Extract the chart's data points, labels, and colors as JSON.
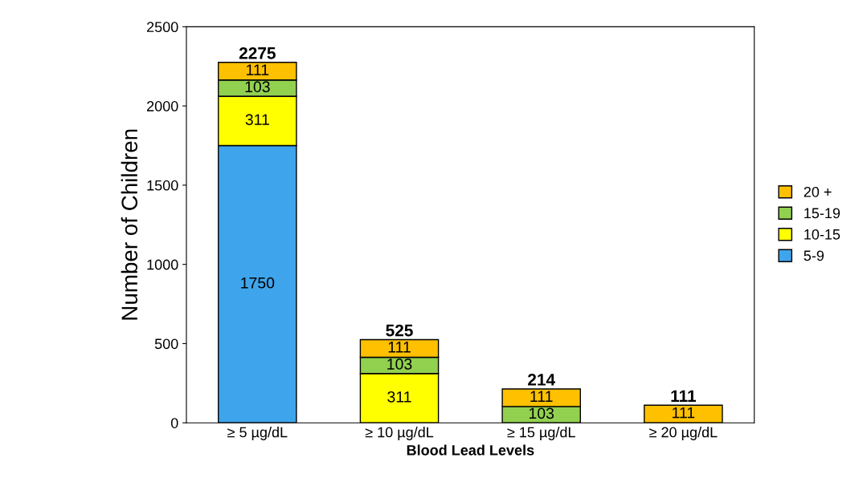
{
  "chart_data": {
    "type": "bar",
    "stacked": true,
    "xlabel": "Blood Lead Levels",
    "ylabel": "Number of Children",
    "categories": [
      "≥ 5 µg/dL",
      "≥ 10 µg/dL",
      "≥ 15 µg/dL",
      "≥ 20 µg/dL"
    ],
    "series": [
      {
        "name": "5-9",
        "color": "#3ea5ec",
        "values": [
          1750,
          null,
          null,
          null
        ],
        "value_labels": [
          "1750",
          null,
          null,
          null
        ]
      },
      {
        "name": "10-15",
        "color": "#ffff00",
        "values": [
          311,
          311,
          null,
          null
        ],
        "value_labels": [
          "311",
          "311",
          null,
          null
        ]
      },
      {
        "name": "15-19",
        "color": "#92d050",
        "values": [
          103,
          103,
          103,
          null
        ],
        "value_labels": [
          "103",
          "103",
          "103",
          null
        ]
      },
      {
        "name": "20 +",
        "color": "#ffc000",
        "values": [
          111,
          111,
          111,
          111
        ],
        "value_labels": [
          "111",
          "111",
          "111",
          "111"
        ]
      }
    ],
    "totals": [
      "2275",
      "525",
      "214",
      "111"
    ],
    "ylim": [
      0,
      2500
    ],
    "yticks": [
      0,
      500,
      1000,
      1500,
      2000,
      2500
    ],
    "grid": false,
    "legend": "right"
  }
}
